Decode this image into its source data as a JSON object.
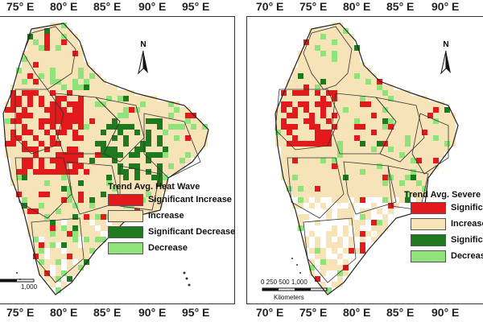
{
  "maps": [
    {
      "top_ticks": [
        "75° E",
        "80° E",
        "85° E",
        "90° E",
        "95° E"
      ],
      "bottom_ticks": [
        "75° E",
        "80° E",
        "85° E",
        "90° E",
        "95° E"
      ],
      "legend_title": "Trend Avg. Heat Wave",
      "legend": [
        {
          "label": "Significant Increase",
          "color": "#e31a1c"
        },
        {
          "label": "Increase",
          "color": "#f6e3b8"
        },
        {
          "label": "Significant Decrease",
          "color": "#1f7a1f"
        },
        {
          "label": "Decrease",
          "color": "#8fe37a"
        }
      ],
      "north": "N",
      "scale_numbers": "1,000",
      "scale_units": ""
    },
    {
      "top_ticks": [
        "70° E",
        "75° E",
        "80° E",
        "85° E",
        "90° E"
      ],
      "bottom_ticks": [
        "70° E",
        "75° E",
        "80° E",
        "85° E",
        "90° E"
      ],
      "legend_title": "Trend Avg. Severe",
      "legend": [
        {
          "label": "Significant",
          "color": "#e31a1c"
        },
        {
          "label": "Increase",
          "color": "#f6e3b8"
        },
        {
          "label": "Significant",
          "color": "#1f7a1f"
        },
        {
          "label": "Decrease",
          "color": "#8fe37a"
        }
      ],
      "north": "N",
      "scale_numbers": "0  250 500    1,000",
      "scale_units": "Kilometers"
    }
  ]
}
